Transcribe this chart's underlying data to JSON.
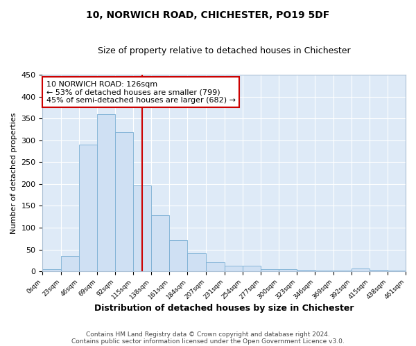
{
  "title": "10, NORWICH ROAD, CHICHESTER, PO19 5DF",
  "subtitle": "Size of property relative to detached houses in Chichester",
  "xlabel": "Distribution of detached houses by size in Chichester",
  "ylabel": "Number of detached properties",
  "bar_color": "#cfe0f3",
  "bar_edge_color": "#7aafd4",
  "background_color": "#deeaf7",
  "grid_color": "#ffffff",
  "property_line_x": 126,
  "property_line_color": "#cc0000",
  "annotation_line1": "10 NORWICH ROAD: 126sqm",
  "annotation_line2": "← 53% of detached houses are smaller (799)",
  "annotation_line3": "45% of semi-detached houses are larger (682) →",
  "annotation_box_color": "#ffffff",
  "annotation_box_edge_color": "#cc0000",
  "footnote1": "Contains HM Land Registry data © Crown copyright and database right 2024.",
  "footnote2": "Contains public sector information licensed under the Open Government Licence v3.0.",
  "bin_edges": [
    0,
    23,
    46,
    69,
    92,
    115,
    138,
    161,
    184,
    207,
    231,
    254,
    277,
    300,
    323,
    346,
    369,
    392,
    415,
    438,
    461
  ],
  "bin_counts": [
    5,
    35,
    290,
    360,
    318,
    197,
    128,
    71,
    41,
    21,
    13,
    13,
    5,
    5,
    3,
    2,
    2,
    6,
    3,
    2
  ],
  "ylim": [
    0,
    450
  ],
  "xlim": [
    0,
    461
  ],
  "fig_bg": "#ffffff"
}
